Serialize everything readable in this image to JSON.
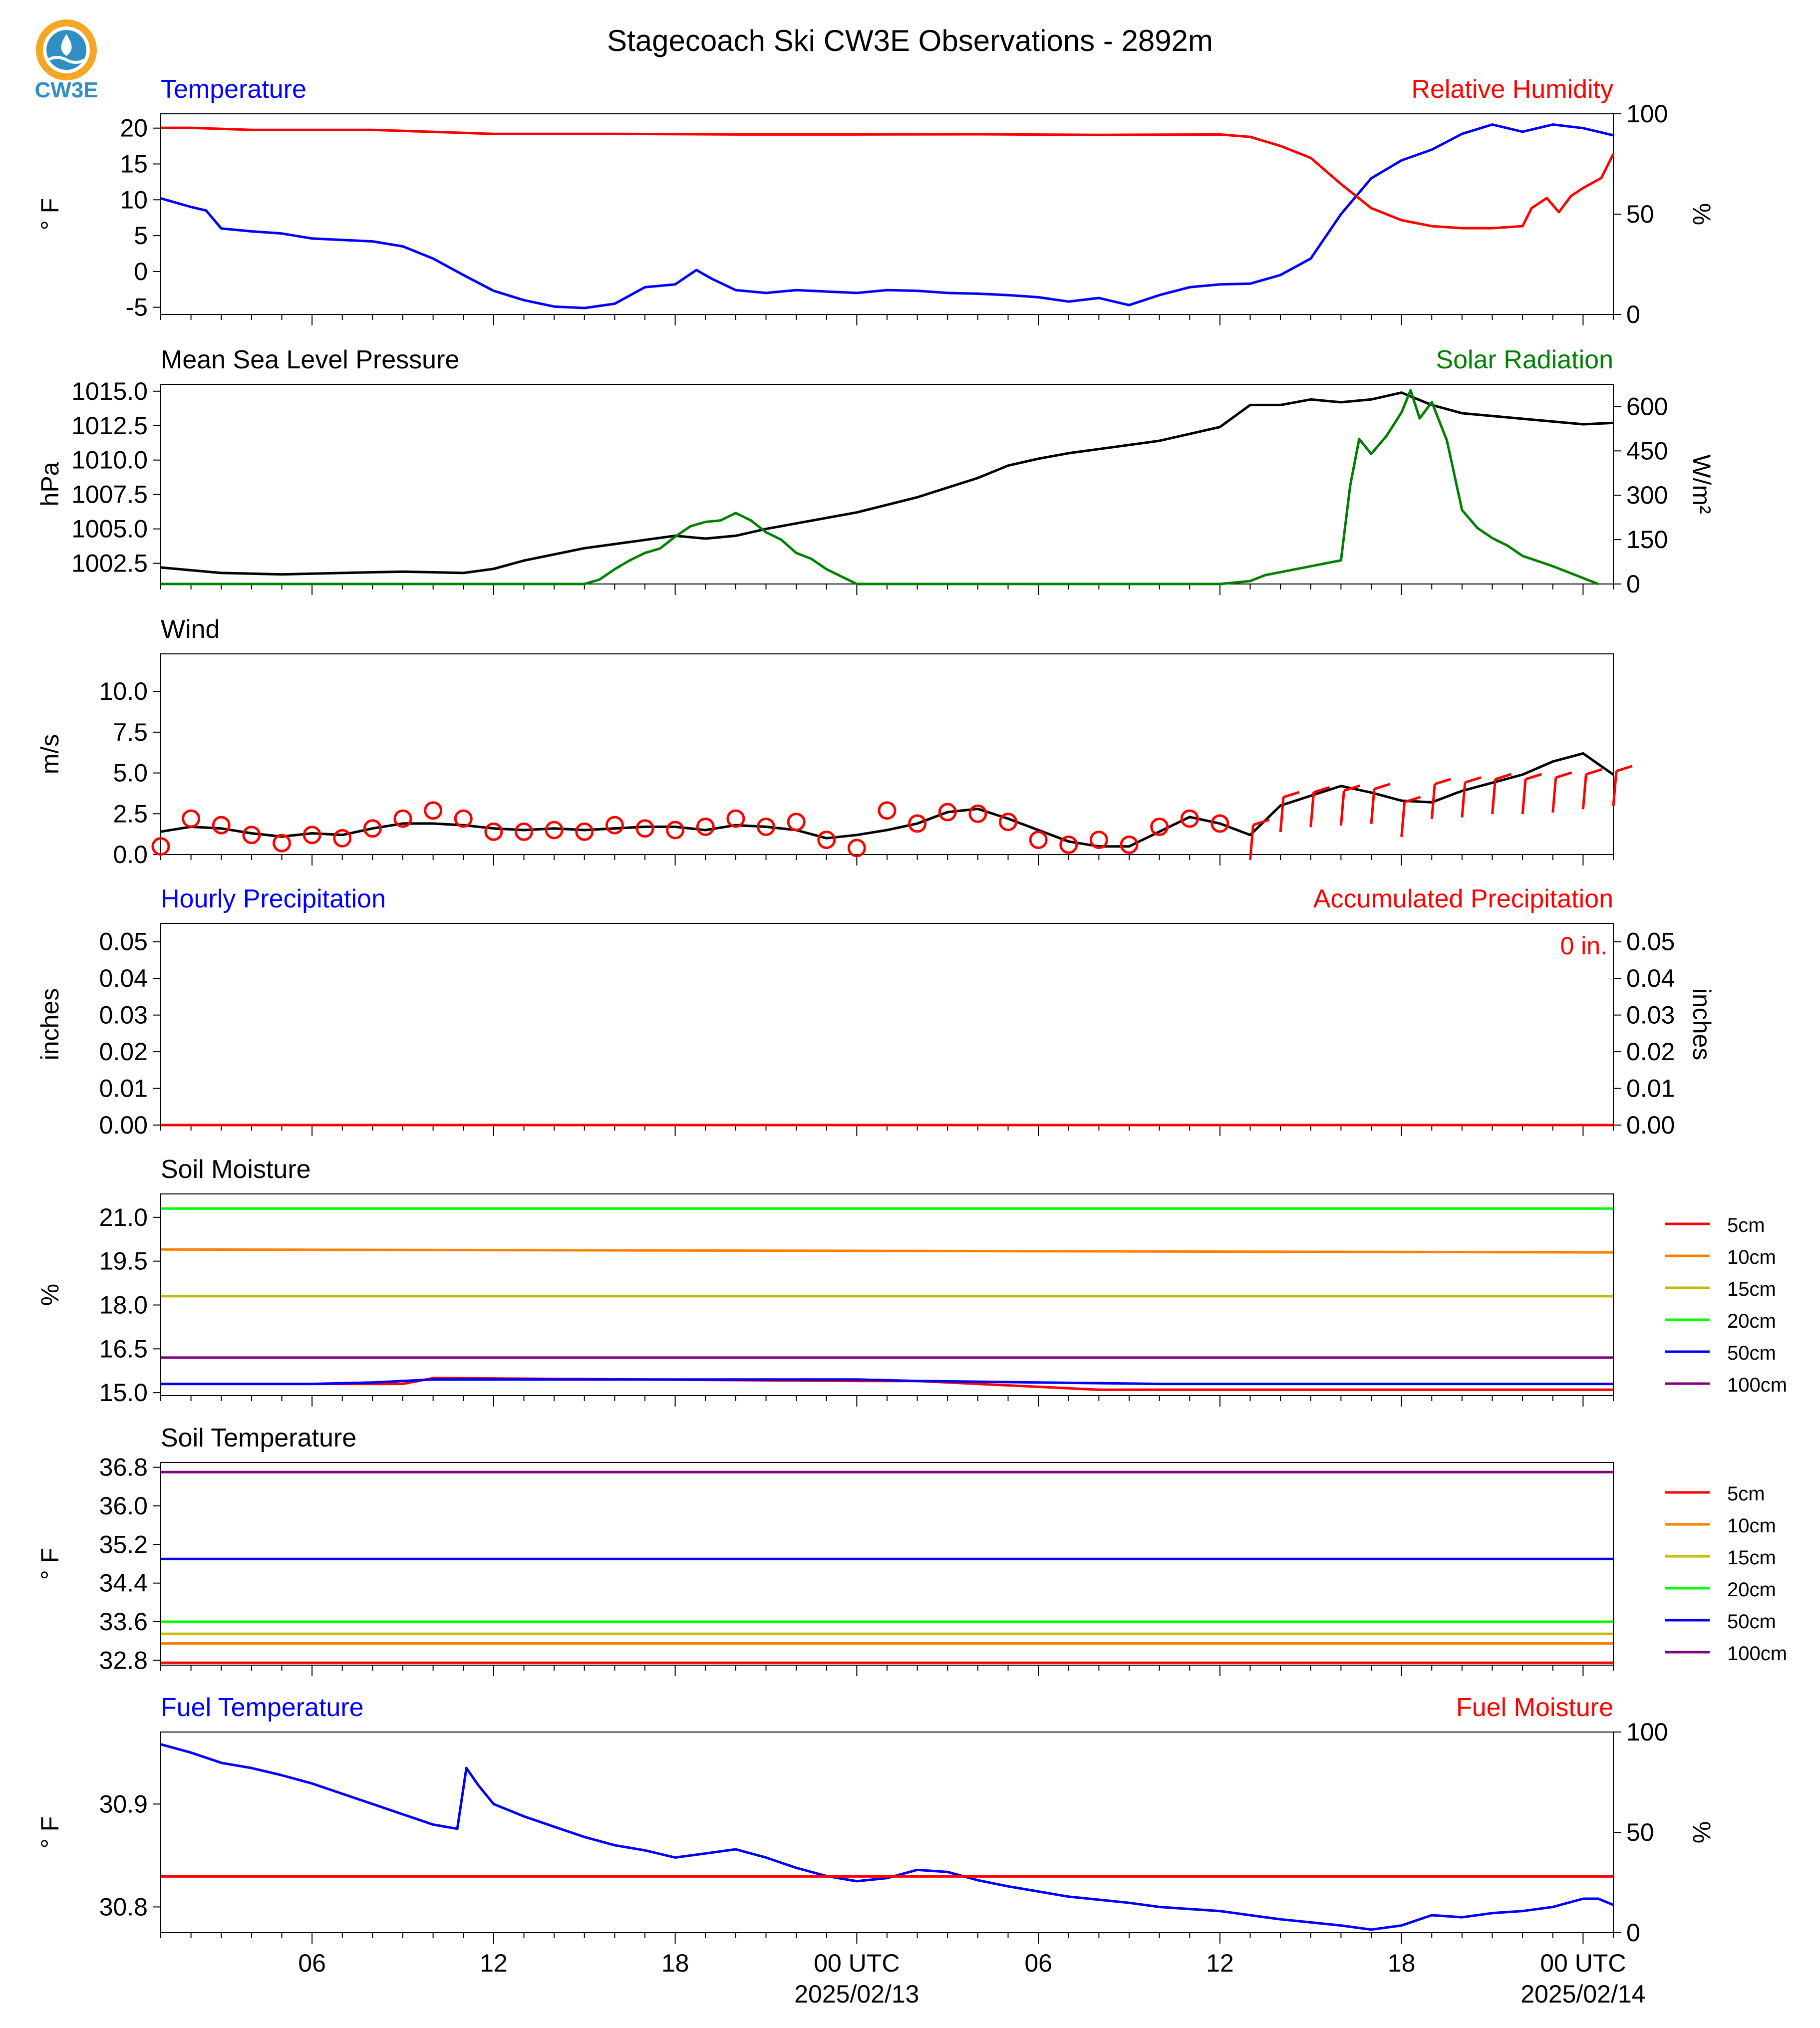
{
  "title": "Stagecoach Ski CW3E Observations - 2892m",
  "logo": {
    "text": "CW3E",
    "icon": "cw3e-logo-icon",
    "color": "#2f8fc3",
    "accent": "#f5a623"
  },
  "time_axis": {
    "tick_labels": [
      "06",
      "12",
      "18",
      "00 UTC",
      "06",
      "12",
      "18",
      "00 UTC"
    ],
    "tick_hours": [
      6,
      12,
      18,
      24,
      30,
      36,
      42,
      48
    ],
    "date_labels": [
      "2025/02/13",
      "2025/02/14"
    ],
    "date_hours": [
      24,
      48
    ],
    "range_hours": [
      1,
      49
    ]
  },
  "chart_data": [
    {
      "type": "line",
      "left_title": "Temperature",
      "right_title": "Relative Humidity",
      "ylabel": "° F",
      "ylabel_right": "%",
      "ylim": [
        -6,
        22
      ],
      "yticks": [
        20,
        15,
        10,
        5,
        0,
        -5
      ],
      "ylim_right": [
        0,
        100
      ],
      "yticks_right": [
        100,
        50,
        0
      ],
      "series": [
        {
          "axis": "left",
          "color": "#0000ff",
          "x": [
            1,
            2,
            2.5,
            3,
            4,
            5,
            6,
            8,
            9,
            10,
            11,
            12,
            13,
            14,
            15,
            16,
            17,
            18,
            18.7,
            19.2,
            20,
            21,
            22,
            23,
            24,
            25,
            26,
            27,
            28,
            29,
            30,
            31,
            32,
            33,
            34,
            35,
            36,
            37,
            38,
            39,
            40,
            41,
            42,
            43,
            44,
            45,
            46,
            47,
            48,
            49
          ],
          "y": [
            10.2,
            9,
            8.5,
            6,
            5.6,
            5.3,
            4.6,
            4.2,
            3.5,
            1.8,
            -0.5,
            -2.7,
            -4,
            -4.9,
            -5.1,
            -4.5,
            -2.2,
            -1.8,
            0.2,
            -1,
            -2.6,
            -3,
            -2.6,
            -2.8,
            -3,
            -2.6,
            -2.7,
            -3,
            -3.1,
            -3.3,
            -3.6,
            -4.2,
            -3.7,
            -4.7,
            -3.3,
            -2.2,
            -1.8,
            -1.7,
            -0.5,
            1.8,
            8,
            13,
            15.5,
            17,
            19.2,
            20.5,
            19.5,
            20.5,
            20,
            19
          ]
        },
        {
          "axis": "right",
          "color": "#ff0000",
          "x": [
            1,
            2,
            4,
            8,
            12,
            16,
            20,
            24,
            28,
            32,
            36,
            37,
            38,
            39,
            40,
            41,
            42,
            43,
            44,
            45,
            46,
            46.3,
            46.8,
            47.2,
            47.6,
            48,
            48.6,
            49
          ],
          "y": [
            93,
            93,
            92,
            92,
            90,
            90,
            89.7,
            89.7,
            89.8,
            89.5,
            89.7,
            88.5,
            84,
            78,
            65,
            53,
            47,
            44,
            43,
            43,
            44,
            53,
            58,
            51,
            59,
            63,
            68,
            80
          ]
        }
      ]
    },
    {
      "type": "line",
      "left_title": "Mean Sea Level Pressure",
      "right_title": "Solar Radiation",
      "ylabel": "hPa",
      "ylabel_right": "W/m²",
      "ylim": [
        1001,
        1015.5
      ],
      "yticks": [
        1015.0,
        1012.5,
        1010.0,
        1007.5,
        1005.0,
        1002.5
      ],
      "ylim_right": [
        0,
        675
      ],
      "yticks_right": [
        600,
        450,
        300,
        150,
        0
      ],
      "series": [
        {
          "axis": "left",
          "color": "#000000",
          "x": [
            1,
            3,
            5,
            7,
            9,
            11,
            12,
            13,
            15,
            17,
            18,
            19,
            20,
            21,
            22,
            24,
            26,
            28,
            29,
            30,
            31,
            32,
            34,
            36,
            37,
            38,
            39,
            40,
            41,
            42,
            43,
            44,
            46,
            47,
            48,
            49
          ],
          "y": [
            1002.2,
            1001.8,
            1001.7,
            1001.8,
            1001.9,
            1001.8,
            1002.1,
            1002.7,
            1003.6,
            1004.2,
            1004.5,
            1004.3,
            1004.5,
            1005.0,
            1005.4,
            1006.2,
            1007.3,
            1008.7,
            1009.6,
            1010.1,
            1010.5,
            1010.8,
            1011.4,
            1012.4,
            1014.0,
            1014.0,
            1014.4,
            1014.2,
            1014.4,
            1014.9,
            1014.0,
            1013.4,
            1013.0,
            1012.8,
            1012.6,
            1012.7
          ]
        },
        {
          "axis": "right",
          "color": "#008000",
          "x": [
            1,
            14,
            15,
            15.5,
            16,
            16.5,
            17,
            17.5,
            18,
            18.5,
            19,
            19.5,
            20,
            20.5,
            21,
            21.5,
            22,
            22.5,
            23,
            24,
            36,
            37,
            37.5,
            38,
            39,
            40,
            40.3,
            40.6,
            41,
            41.5,
            42,
            42.3,
            42.6,
            43,
            43.5,
            44,
            44.5,
            45,
            45.5,
            46,
            47,
            48,
            48.5
          ],
          "y": [
            0,
            0,
            0,
            15,
            50,
            80,
            105,
            120,
            160,
            195,
            210,
            215,
            240,
            215,
            175,
            150,
            105,
            85,
            50,
            0,
            0,
            10,
            30,
            40,
            60,
            80,
            330,
            490,
            440,
            500,
            580,
            655,
            560,
            615,
            485,
            250,
            190,
            155,
            130,
            95,
            60,
            20,
            0
          ]
        }
      ]
    },
    {
      "type": "line",
      "left_title": "Wind",
      "ylabel": "m/s",
      "ylim": [
        0,
        12.3
      ],
      "yticks": [
        10.0,
        7.5,
        5.0,
        2.5,
        0.0
      ],
      "series": [
        {
          "axis": "left",
          "color": "#000000",
          "x": [
            1,
            2,
            3,
            4,
            5,
            6,
            7,
            8,
            9,
            10,
            11,
            12,
            13,
            14,
            15,
            16,
            17,
            18,
            19,
            20,
            21,
            22,
            23,
            24,
            25,
            26,
            27,
            28,
            29,
            30,
            31,
            32,
            33,
            34,
            35,
            36,
            37,
            38,
            39,
            40,
            41,
            42,
            43,
            44,
            45,
            46,
            47,
            48,
            49
          ],
          "y": [
            1.4,
            1.7,
            1.6,
            1.3,
            1.1,
            1.3,
            1.2,
            1.6,
            1.9,
            1.9,
            1.8,
            1.6,
            1.5,
            1.6,
            1.5,
            1.6,
            1.7,
            1.7,
            1.5,
            1.8,
            1.7,
            1.5,
            1.0,
            1.2,
            1.5,
            1.9,
            2.6,
            2.8,
            2.2,
            1.5,
            0.8,
            0.5,
            0.5,
            1.4,
            2.3,
            1.9,
            1.2,
            3.0,
            3.6,
            4.2,
            3.8,
            3.3,
            3.2,
            3.9,
            4.4,
            4.9,
            5.7,
            6.2,
            4.9
          ]
        },
        {
          "axis": "left",
          "color": "#ff0000",
          "style": "barbs",
          "x": [
            1,
            2,
            3,
            4,
            5,
            6,
            7,
            8,
            9,
            10,
            11,
            12,
            13,
            14,
            15,
            16,
            17,
            18,
            19,
            20,
            21,
            22,
            23,
            24,
            25,
            26,
            27,
            28,
            29,
            30,
            31,
            32,
            33,
            34,
            35,
            36,
            37,
            38,
            39,
            40,
            41,
            42,
            43,
            44,
            45,
            46,
            47,
            48,
            49
          ],
          "y": [
            0.5,
            2.2,
            1.8,
            1.2,
            0.7,
            1.2,
            1.0,
            1.6,
            2.2,
            2.7,
            2.2,
            1.4,
            1.4,
            1.5,
            1.4,
            1.8,
            1.6,
            1.5,
            1.7,
            2.2,
            1.7,
            2.0,
            0.9,
            0.4,
            2.7,
            1.9,
            2.6,
            2.5,
            2.0,
            0.9,
            0.6,
            0.9,
            0.6,
            1.7,
            2.2,
            1.9,
            0.9,
            2.6,
            2.9,
            3.0,
            3.1,
            2.3,
            3.4,
            3.5,
            3.7,
            3.7,
            3.8,
            4.0,
            4.2
          ]
        }
      ]
    },
    {
      "type": "bar",
      "left_title": "Hourly Precipitation",
      "right_title": "Accumulated Precipitation",
      "annotation": "0 in.",
      "ylabel": "inches",
      "ylabel_right": "inches",
      "ylim": [
        0,
        0.055
      ],
      "yticks": [
        0.05,
        0.04,
        0.03,
        0.02,
        0.01,
        0.0
      ],
      "ylim_right": [
        0,
        0.055
      ],
      "yticks_right": [
        0.05,
        0.04,
        0.03,
        0.02,
        0.01,
        0.0
      ],
      "series": [
        {
          "axis": "left",
          "color": "#0000ff",
          "x": [
            1,
            49
          ],
          "y": [
            0,
            0
          ]
        },
        {
          "axis": "right",
          "color": "#ff0000",
          "x": [
            1,
            49
          ],
          "y": [
            0,
            0
          ]
        }
      ]
    },
    {
      "type": "line",
      "left_title": "Soil Moisture",
      "ylabel": "%",
      "ylim": [
        14.9,
        21.8
      ],
      "yticks": [
        21.0,
        19.5,
        18.0,
        16.5,
        15.0
      ],
      "series": [
        {
          "name": "5cm",
          "color": "#ff0000",
          "x": [
            1,
            9,
            10,
            24,
            26,
            28,
            30,
            32,
            49
          ],
          "y": [
            15.3,
            15.3,
            15.5,
            15.4,
            15.4,
            15.3,
            15.2,
            15.1,
            15.1
          ]
        },
        {
          "name": "10cm",
          "color": "#ff8000",
          "x": [
            1,
            49
          ],
          "y": [
            19.9,
            19.8
          ]
        },
        {
          "name": "15cm",
          "color": "#bfbf00",
          "x": [
            1,
            49
          ],
          "y": [
            18.3,
            18.3
          ]
        },
        {
          "name": "20cm",
          "color": "#00ff00",
          "x": [
            1,
            49
          ],
          "y": [
            21.3,
            21.3
          ]
        },
        {
          "name": "50cm",
          "color": "#0000ff",
          "x": [
            1,
            6,
            8,
            10,
            24,
            26,
            30,
            34,
            38,
            49
          ],
          "y": [
            15.3,
            15.3,
            15.35,
            15.45,
            15.45,
            15.4,
            15.35,
            15.3,
            15.3,
            15.3
          ]
        },
        {
          "name": "100cm",
          "color": "#800080",
          "x": [
            1,
            49
          ],
          "y": [
            16.2,
            16.2
          ]
        }
      ]
    },
    {
      "type": "line",
      "left_title": "Soil Temperature",
      "ylabel": "° F",
      "ylim": [
        32.7,
        36.9
      ],
      "yticks": [
        36.8,
        36.0,
        35.2,
        34.4,
        33.6,
        32.8
      ],
      "series": [
        {
          "name": "5cm",
          "color": "#ff0000",
          "x": [
            1,
            49
          ],
          "y": [
            32.75,
            32.75
          ]
        },
        {
          "name": "10cm",
          "color": "#ff8000",
          "x": [
            1,
            49
          ],
          "y": [
            33.15,
            33.15
          ]
        },
        {
          "name": "15cm",
          "color": "#bfbf00",
          "x": [
            1,
            49
          ],
          "y": [
            33.35,
            33.35
          ]
        },
        {
          "name": "20cm",
          "color": "#00ff00",
          "x": [
            1,
            49
          ],
          "y": [
            33.6,
            33.6
          ]
        },
        {
          "name": "50cm",
          "color": "#0000ff",
          "x": [
            1,
            49
          ],
          "y": [
            34.9,
            34.9
          ]
        },
        {
          "name": "100cm",
          "color": "#800080",
          "x": [
            1,
            49
          ],
          "y": [
            36.7,
            36.7
          ]
        }
      ]
    },
    {
      "type": "line",
      "left_title": "Fuel Temperature",
      "right_title": "Fuel Moisture",
      "ylabel": "° F",
      "ylabel_right": "%",
      "ylim": [
        30.775,
        30.97
      ],
      "yticks": [
        30.9,
        30.8
      ],
      "ylim_right": [
        0,
        100
      ],
      "yticks_right": [
        100,
        50,
        0
      ],
      "series": [
        {
          "axis": "left",
          "color": "#0000ff",
          "x": [
            1,
            2,
            3,
            4,
            5,
            6,
            7,
            8,
            9,
            10,
            10.8,
            11.1,
            11.5,
            12,
            13,
            14,
            15,
            16,
            17,
            18,
            19,
            20,
            21,
            22,
            23,
            24,
            25,
            26,
            27,
            28,
            29,
            30,
            31,
            32,
            33,
            34,
            35,
            36,
            37,
            38,
            39,
            40,
            41,
            42,
            43,
            44,
            45,
            46,
            47,
            48,
            48.5,
            49
          ],
          "y": [
            30.958,
            30.95,
            30.94,
            30.935,
            30.928,
            30.92,
            30.91,
            30.9,
            30.89,
            30.88,
            30.876,
            30.935,
            30.918,
            30.9,
            30.888,
            30.878,
            30.868,
            30.86,
            30.855,
            30.848,
            30.852,
            30.856,
            30.848,
            30.838,
            30.83,
            30.825,
            30.828,
            30.836,
            30.834,
            30.826,
            30.82,
            30.815,
            30.81,
            30.807,
            30.804,
            30.8,
            30.798,
            30.796,
            30.792,
            30.788,
            30.785,
            30.782,
            30.778,
            30.782,
            30.792,
            30.79,
            30.794,
            30.796,
            30.8,
            30.808,
            30.808,
            30.802
          ]
        },
        {
          "axis": "right",
          "color": "#ff0000",
          "x": [
            1,
            49
          ],
          "y": [
            28,
            28
          ]
        }
      ]
    }
  ]
}
